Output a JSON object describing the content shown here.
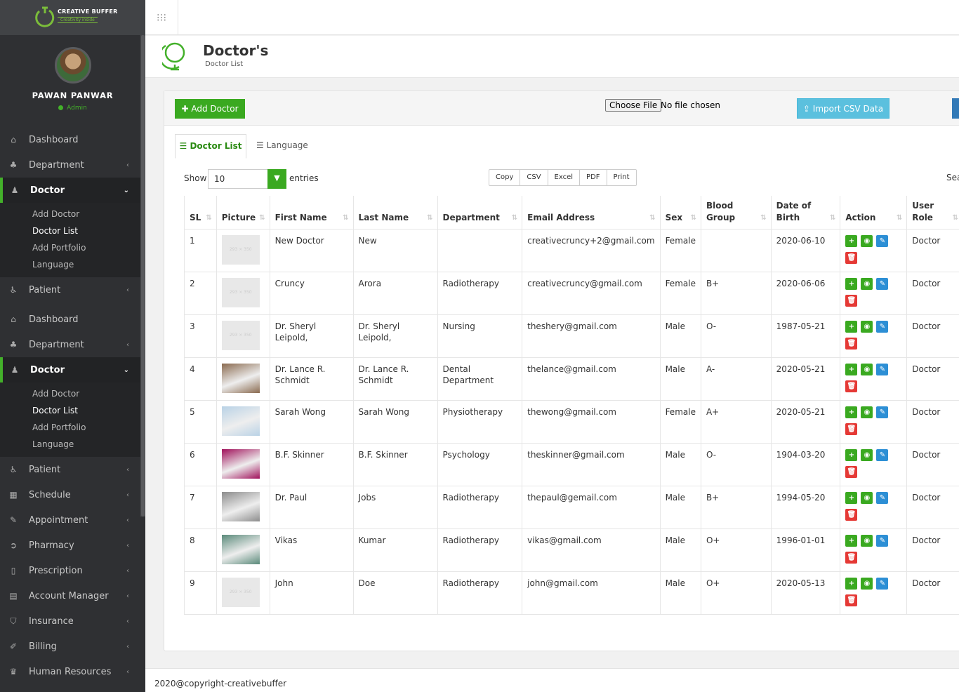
{
  "brand": {
    "name": "CREATIVE BUFFER",
    "tagline": "Creativity inside"
  },
  "user": {
    "name": "PAWAN PANWAR",
    "role": "Admin"
  },
  "menu1": [
    "Dashboard",
    "Department",
    "Doctor"
  ],
  "menu1_sub": [
    "Add Doctor",
    "Doctor List",
    "Add Portfolio",
    "Language"
  ],
  "menu1_after": "Patient",
  "menu2": [
    "Dashboard",
    "Department",
    "Doctor"
  ],
  "menu2_sub": [
    "Add Doctor",
    "Doctor List",
    "Add Portfolio",
    "Language"
  ],
  "menu2_after": [
    "Patient",
    "Schedule",
    "Appointment",
    "Pharmacy",
    "Prescription",
    "Account Manager",
    "Insurance",
    "Billing",
    "Human Resources"
  ],
  "page": {
    "title": "Doctor's",
    "subtitle": "Doctor List"
  },
  "toolbar": {
    "add": "Add Doctor",
    "choose": "Choose File",
    "no_file": "No file chosen",
    "import": "Import CSV Data"
  },
  "tabs": [
    "Doctor List",
    "Language"
  ],
  "show": "Show",
  "entries_value": "10",
  "entries": "entries",
  "export": [
    "Copy",
    "CSV",
    "Excel",
    "PDF",
    "Print"
  ],
  "search": "Sea",
  "columns": [
    "SL",
    "Picture",
    "First Name",
    "Last Name",
    "Department",
    "Email Address",
    "Sex",
    "Blood Group",
    "Date of Birth",
    "Action",
    "User Role"
  ],
  "rows": [
    {
      "sl": "1",
      "pic": "293 × 350",
      "first": "New Doctor",
      "last": "New",
      "dept": "",
      "email": "creativecruncy+2@gmail.com",
      "sex": "Female",
      "blood": "",
      "dob": "2020-06-10",
      "role": "Doctor"
    },
    {
      "sl": "2",
      "pic": "293 × 350",
      "first": "Cruncy",
      "last": "Arora",
      "dept": "Radiotherapy",
      "email": "creativecruncy@gmail.com",
      "sex": "Female",
      "blood": "B+",
      "dob": "2020-06-06",
      "role": "Doctor"
    },
    {
      "sl": "3",
      "pic": "293 × 350",
      "first": "Dr. Sheryl Leipold,",
      "last": "Dr. Sheryl Leipold,",
      "dept": "Nursing",
      "email": "theshery@gmail.com",
      "sex": "Male",
      "blood": "O-",
      "dob": "1987-05-21",
      "role": "Doctor"
    },
    {
      "sl": "4",
      "pic": "",
      "first": "Dr. Lance R. Schmidt",
      "last": "Dr. Lance R. Schmidt",
      "dept": "Dental Department",
      "email": "thelance@gmail.com",
      "sex": "Male",
      "blood": "A-",
      "dob": "2020-05-21",
      "role": "Doctor"
    },
    {
      "sl": "5",
      "pic": "",
      "first": "Sarah Wong",
      "last": "Sarah Wong",
      "dept": "Physiotherapy",
      "email": "thewong@gmail.com",
      "sex": "Female",
      "blood": "A+",
      "dob": "2020-05-21",
      "role": "Doctor"
    },
    {
      "sl": "6",
      "pic": "",
      "first": "B.F. Skinner",
      "last": "B.F. Skinner",
      "dept": "Psychology",
      "email": "theskinner@gmail.com",
      "sex": "Male",
      "blood": "O-",
      "dob": "1904-03-20",
      "role": "Doctor"
    },
    {
      "sl": "7",
      "pic": "",
      "first": "Dr. Paul",
      "last": "Jobs",
      "dept": "Radiotherapy",
      "email": "thepaul@gemail.com",
      "sex": "Male",
      "blood": "B+",
      "dob": "1994-05-20",
      "role": "Doctor"
    },
    {
      "sl": "8",
      "pic": "",
      "first": "Vikas",
      "last": "Kumar",
      "dept": "Radiotherapy",
      "email": "vikas@gmail.com",
      "sex": "Male",
      "blood": "O+",
      "dob": "1996-01-01",
      "role": "Doctor"
    },
    {
      "sl": "9",
      "pic": "293 × 350",
      "first": "John",
      "last": "Doe",
      "dept": "Radiotherapy",
      "email": "john@gmail.com",
      "sex": "Male",
      "blood": "O+",
      "dob": "2020-05-13",
      "role": "Doctor"
    }
  ],
  "photo_colors": [
    "",
    "",
    "",
    "#8a6a4f",
    "#b9d2e6",
    "#a0105a",
    "#8c8c8c",
    "#5a8a7a",
    ""
  ],
  "footer": "2020@copyright-creativebuffer"
}
